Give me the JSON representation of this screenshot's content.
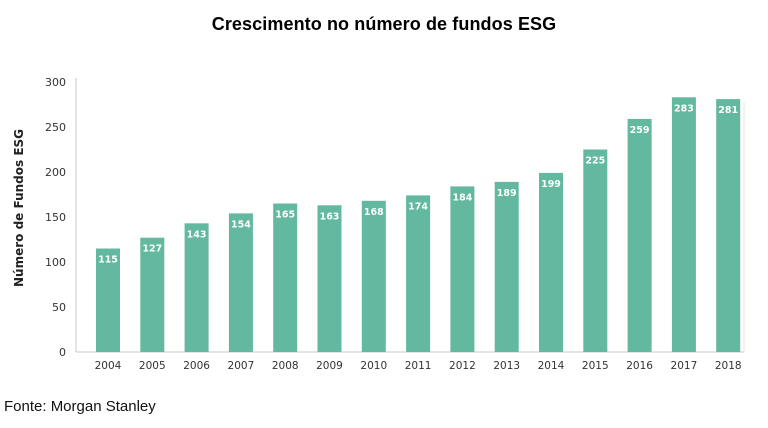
{
  "page": {
    "title": "Crescimento no número de fundos ESG",
    "source": "Fonte: Morgan Stanley"
  },
  "chart_data": {
    "type": "bar",
    "title": "Crescimento no número de fundos ESG",
    "xlabel": "",
    "ylabel": "Número de Fundos ESG",
    "categories": [
      "2004",
      "2005",
      "2006",
      "2007",
      "2008",
      "2009",
      "2010",
      "2011",
      "2012",
      "2013",
      "2014",
      "2015",
      "2016",
      "2017",
      "2018"
    ],
    "values": [
      115,
      127,
      143,
      154,
      165,
      163,
      168,
      174,
      184,
      189,
      199,
      225,
      259,
      283,
      281
    ],
    "ylim": [
      0,
      300
    ],
    "yticks": [
      0,
      50,
      100,
      150,
      200,
      250,
      300
    ],
    "grid": false,
    "bar_color": "#63b8a0",
    "label_color": "#ffffff",
    "axis_color": "#c8c8c8",
    "tick_color": "#333333"
  }
}
